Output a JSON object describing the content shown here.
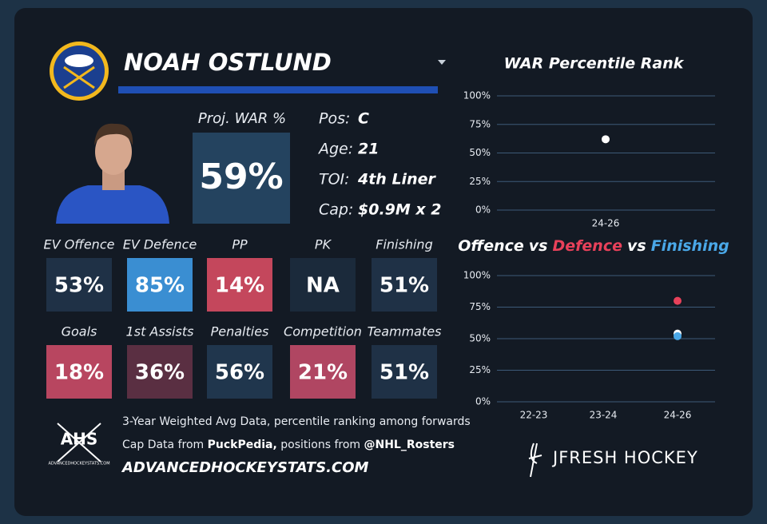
{
  "player": {
    "name": "NOAH OSTLUND",
    "proj_label": "Proj. WAR %",
    "proj_value": "59%",
    "proj_color": "#24435f",
    "info": [
      {
        "key": "Pos:",
        "value": "C"
      },
      {
        "key": "Age:",
        "value": "21"
      },
      {
        "key": "TOI:",
        "value": "4th Liner"
      },
      {
        "key": "Cap:",
        "value": "$0.9M x 2"
      }
    ]
  },
  "tiles": [
    {
      "label": "EV Offence",
      "value": "53%",
      "color": "#1f3146"
    },
    {
      "label": "EV Defence",
      "value": "85%",
      "color": "#3a8ed2"
    },
    {
      "label": "PP",
      "value": "14%",
      "color": "#c4475c"
    },
    {
      "label": "PK",
      "value": "NA",
      "color": "#1b2a3b"
    },
    {
      "label": "Finishing",
      "value": "51%",
      "color": "#1f3146"
    },
    {
      "label": "Goals",
      "value": "18%",
      "color": "#b84660"
    },
    {
      "label": "1st Assists",
      "value": "36%",
      "color": "#5a2f42"
    },
    {
      "label": "Penalties",
      "value": "56%",
      "color": "#20364d"
    },
    {
      "label": "Competition",
      "value": "21%",
      "color": "#b04662"
    },
    {
      "label": "Teammates",
      "value": "51%",
      "color": "#1f3146"
    }
  ],
  "footer": {
    "note": "3-Year Weighted Avg Data, percentile ranking among forwards",
    "cap_prefix": "Cap Data from",
    "cap_source": "PuckPedia,",
    "pos_prefix": "positions from",
    "pos_source": "@NHL_Rosters",
    "site": "ADVANCEDHOCKEYSTATS.COM",
    "logo": "AHS",
    "logo_small": "ADVANCEDHOCKEYSTATS.COM",
    "brand": "JFRESH HOCKEY"
  },
  "chart_data": [
    {
      "type": "scatter",
      "title": "WAR Percentile Rank",
      "categories": [
        "24-26"
      ],
      "series": [
        {
          "color": "#ffffff",
          "values": [
            62
          ]
        }
      ],
      "ylim": [
        0,
        100
      ],
      "yticks": [
        {
          "value": 0,
          "label": "0%"
        },
        {
          "value": 25,
          "label": "25%"
        },
        {
          "value": 50,
          "label": "50%"
        },
        {
          "value": 75,
          "label": "75%"
        },
        {
          "value": 100,
          "label": "100%"
        }
      ],
      "grid": true
    },
    {
      "type": "scatter",
      "title_joiner": "vs",
      "categories": [
        "22-23",
        "23-24",
        "24-26"
      ],
      "series": [
        {
          "name": "Offence",
          "color": "#ffffff",
          "values": [
            null,
            null,
            54
          ]
        },
        {
          "name": "Defence",
          "color": "#e8415a",
          "values": [
            null,
            null,
            80
          ]
        },
        {
          "name": "Finishing",
          "color": "#4aa8e8",
          "values": [
            null,
            null,
            52
          ]
        }
      ],
      "ylim": [
        0,
        100
      ],
      "yticks": [
        {
          "value": 0,
          "label": "0%"
        },
        {
          "value": 25,
          "label": "25%"
        },
        {
          "value": 50,
          "label": "50%"
        },
        {
          "value": 75,
          "label": "75%"
        },
        {
          "value": 100,
          "label": "100%"
        }
      ],
      "grid": true
    }
  ]
}
